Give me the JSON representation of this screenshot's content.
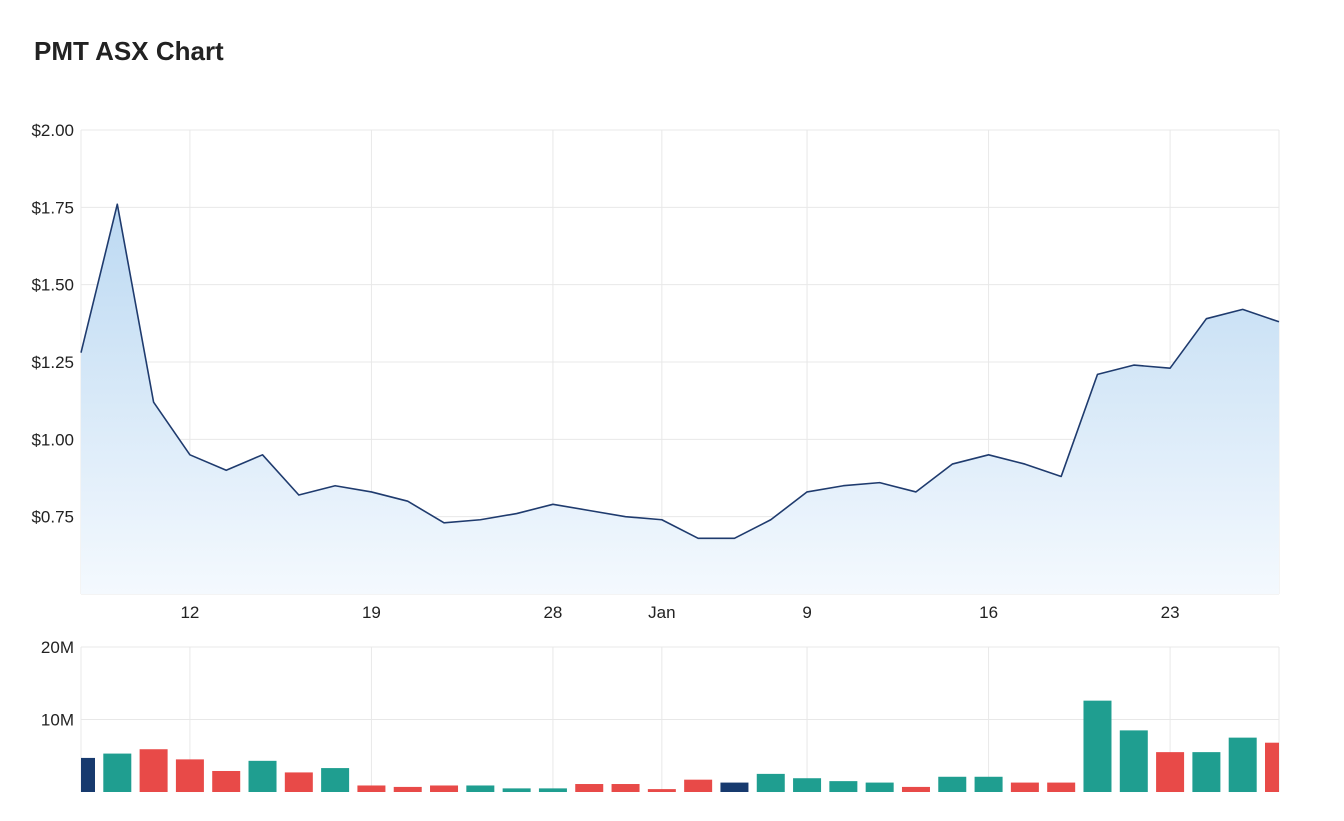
{
  "title": "PMT ASX Chart",
  "chart_data": [
    {
      "type": "area",
      "name": "price",
      "ylim": [
        0.5,
        2.0
      ],
      "y_ticks": [
        0.75,
        1.0,
        1.25,
        1.5,
        1.75,
        2.0
      ],
      "y_tick_labels": [
        "$0.75",
        "$1.00",
        "$1.25",
        "$1.50",
        "$1.75",
        "$2.00"
      ],
      "x_tick_labels": [
        "12",
        "19",
        "28",
        "Jan",
        "9",
        "16",
        "23"
      ],
      "x_tick_index": [
        3,
        8,
        13,
        16,
        20,
        25,
        30
      ],
      "values": [
        1.28,
        1.76,
        1.12,
        0.95,
        0.9,
        0.95,
        0.82,
        0.85,
        0.83,
        0.8,
        0.73,
        0.74,
        0.76,
        0.79,
        0.77,
        0.75,
        0.74,
        0.68,
        0.68,
        0.74,
        0.83,
        0.85,
        0.86,
        0.83,
        0.92,
        0.95,
        0.92,
        0.88,
        1.21,
        1.24,
        1.23,
        1.39,
        1.42,
        1.38
      ],
      "colors": {
        "line": "#1f3b6e",
        "fill_top": "#bcd9f2",
        "fill_bottom": "#f4f9fe"
      },
      "grid": true
    },
    {
      "type": "bar",
      "name": "volume",
      "ylim": [
        0,
        20
      ],
      "y_ticks": [
        10,
        20
      ],
      "y_tick_labels": [
        "10M",
        "20M"
      ],
      "values": [
        4.7,
        5.3,
        5.9,
        4.5,
        2.9,
        4.3,
        2.7,
        3.3,
        0.9,
        0.7,
        0.9,
        0.9,
        0.5,
        0.5,
        1.1,
        1.1,
        0.4,
        1.7,
        1.3,
        2.5,
        1.9,
        1.5,
        1.3,
        0.7,
        2.1,
        2.1,
        1.3,
        1.3,
        12.6,
        8.5,
        5.5,
        5.5,
        7.5,
        6.8
      ],
      "directions": [
        "flat",
        "up",
        "down",
        "down",
        "down",
        "up",
        "down",
        "up",
        "down",
        "down",
        "down",
        "up",
        "up",
        "up",
        "down",
        "down",
        "down",
        "down",
        "flat",
        "up",
        "up",
        "up",
        "up",
        "down",
        "up",
        "up",
        "down",
        "down",
        "up",
        "up",
        "down",
        "up",
        "up",
        "down"
      ],
      "colors": {
        "up": "#1f9e90",
        "down": "#e84a48",
        "flat": "#173a6e"
      }
    }
  ]
}
